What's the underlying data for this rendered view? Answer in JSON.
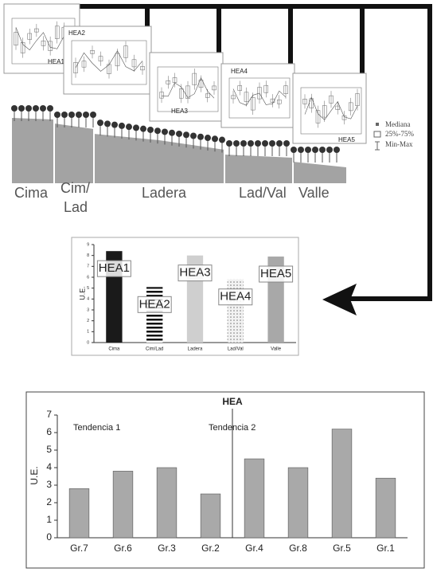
{
  "diagram": {
    "panels": [
      "HEA1",
      "HEA2",
      "HEA3",
      "HEA4",
      "HEA5"
    ],
    "zones": [
      "Cima",
      [
        "Cim/",
        "Lad"
      ],
      "Ladera",
      "Lad/Val",
      "Valle"
    ],
    "legend": [
      "Mediana",
      "25%-75%",
      "Min-Max"
    ]
  },
  "chart_data": [
    {
      "type": "bar",
      "ylabel": "U.E.",
      "categories": [
        "Cima",
        "Cim/Lad",
        "Ladera",
        "Lad/Val",
        "Valle"
      ],
      "values": [
        8.4,
        5.1,
        8.0,
        5.8,
        7.9
      ],
      "bar_labels": [
        "HEA1",
        "HEA2",
        "HEA3",
        "HEA4",
        "HEA5"
      ],
      "colors": [
        "#1a1a1a",
        "url(#stripes)",
        "#cfcfcf",
        "url(#dots)",
        "#a8a8a8"
      ],
      "ylim": [
        0,
        9
      ],
      "yticks": [
        0,
        1,
        2,
        3,
        4,
        5,
        6,
        7,
        8,
        9
      ],
      "grid": false
    },
    {
      "type": "bar",
      "title": "HEA",
      "ylabel": "U.E.",
      "categories": [
        "Gr.7",
        "Gr.6",
        "Gr.3",
        "Gr.2",
        "Gr.4",
        "Gr.8",
        "Gr.5",
        "Gr.1"
      ],
      "values": [
        2.8,
        3.8,
        4.0,
        2.5,
        4.5,
        4.0,
        6.2,
        3.4
      ],
      "color": "#a9a9a9",
      "annotations": [
        "Tendencia 1",
        "Tendencia 2"
      ],
      "ylim": [
        0,
        7
      ],
      "yticks": [
        0,
        1,
        2,
        3,
        4,
        5,
        6,
        7
      ],
      "grid": false
    }
  ]
}
